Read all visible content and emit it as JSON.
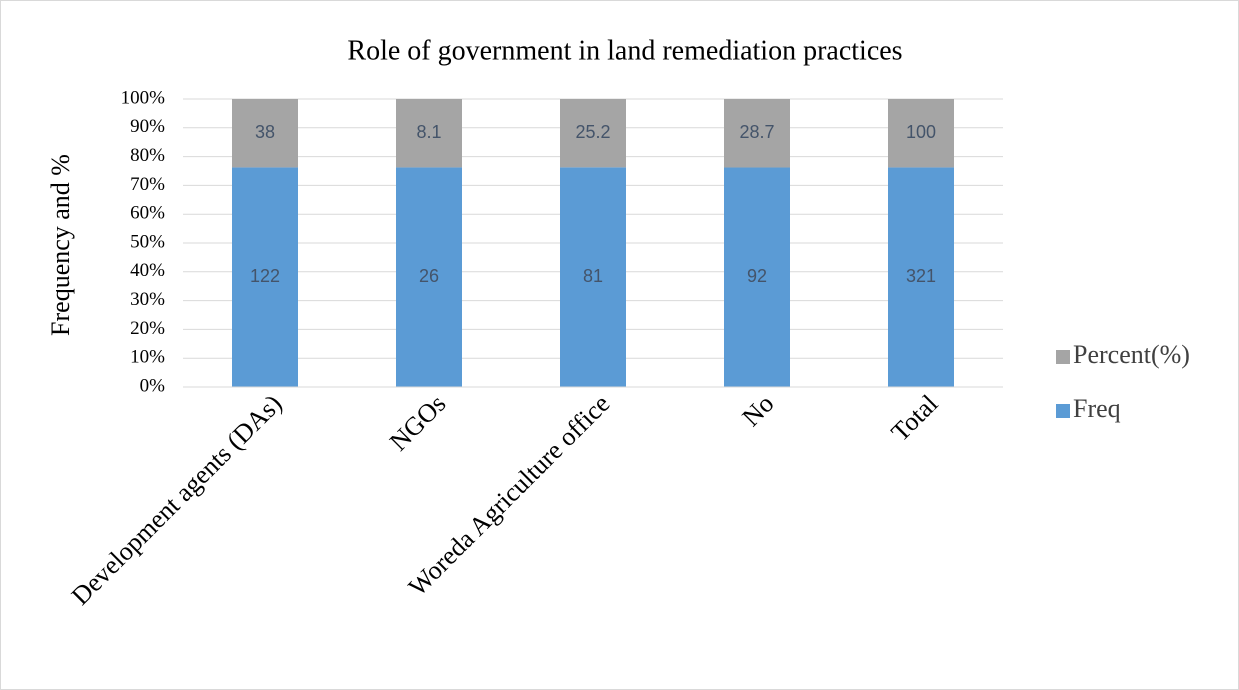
{
  "chart_data": {
    "type": "bar",
    "stacking": "percent",
    "title": "Role of government in land remediation practices",
    "y_label": "Frequency and  %",
    "categories": [
      "Development agents (DAs)",
      "NGOs",
      "Woreda Agriculture office",
      "No",
      "Total"
    ],
    "series": [
      {
        "name": "Freq",
        "color": "#5b9bd5",
        "values": [
          122,
          26,
          81,
          92,
          321
        ]
      },
      {
        "name": "Percent(%)",
        "color": "#a5a5a5",
        "values": [
          38,
          8.1,
          25.2,
          28.7,
          100
        ]
      }
    ],
    "ylim": [
      0,
      100
    ],
    "yticks": [
      {
        "value": 0,
        "label": "0%"
      },
      {
        "value": 10,
        "label": "10%"
      },
      {
        "value": 20,
        "label": "20%"
      },
      {
        "value": 30,
        "label": "30%"
      },
      {
        "value": 40,
        "label": "40%"
      },
      {
        "value": 50,
        "label": "50%"
      },
      {
        "value": 60,
        "label": "60%"
      },
      {
        "value": 70,
        "label": "70%"
      },
      {
        "value": 80,
        "label": "80%"
      },
      {
        "value": 90,
        "label": "90%"
      },
      {
        "value": 100,
        "label": "100%"
      }
    ],
    "grid": true,
    "legend": "right"
  }
}
